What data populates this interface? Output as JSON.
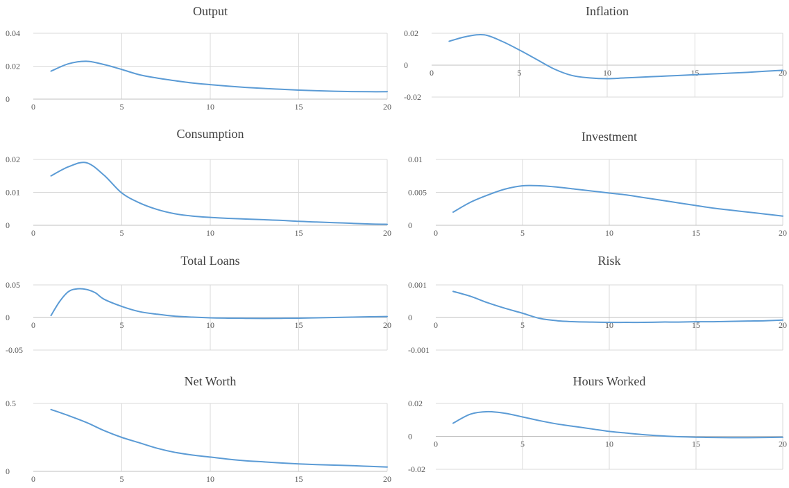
{
  "colors": {
    "line": "#5b9bd5",
    "grid": "#d9d9d9",
    "axis": "#bfbfbf",
    "text": "#595959"
  },
  "chart_data": [
    {
      "type": "line",
      "title": "Output",
      "xlim": [
        0,
        20
      ],
      "ylim": [
        0,
        0.04
      ],
      "xticks": [
        0,
        5,
        10,
        15,
        20
      ],
      "xtick_labels": [
        "0",
        "5",
        "10",
        "15",
        "20"
      ],
      "yticks": [
        0,
        0.02,
        0.04
      ],
      "ytick_labels": [
        "0",
        "0.02",
        "0.04"
      ],
      "grid": true,
      "legend": "none",
      "x": [
        1,
        2,
        3,
        4,
        5,
        6,
        7,
        8,
        9,
        10,
        11,
        12,
        13,
        14,
        15,
        16,
        17,
        18,
        19,
        20
      ],
      "series": [
        {
          "values": [
            0.017,
            0.0215,
            0.023,
            0.021,
            0.018,
            0.0148,
            0.0128,
            0.0112,
            0.0098,
            0.0088,
            0.0079,
            0.0071,
            0.0065,
            0.006,
            0.0055,
            0.0051,
            0.0048,
            0.0046,
            0.0045,
            0.0045
          ]
        }
      ]
    },
    {
      "type": "line",
      "title": "Inflation",
      "xlim": [
        0,
        20
      ],
      "ylim": [
        -0.02,
        0.02
      ],
      "xticks": [
        0,
        5,
        10,
        15,
        20
      ],
      "xtick_labels": [
        "0",
        "5",
        "10",
        "15",
        "20"
      ],
      "yticks": [
        -0.02,
        0,
        0.02
      ],
      "ytick_labels": [
        "-0.02",
        "0",
        "0.02"
      ],
      "grid": true,
      "legend": "none",
      "x": [
        1,
        2,
        3,
        4,
        5,
        6,
        7,
        8,
        9,
        10,
        11,
        12,
        13,
        14,
        15,
        16,
        17,
        18,
        19,
        20
      ],
      "series": [
        {
          "values": [
            0.015,
            0.018,
            0.019,
            0.015,
            0.0095,
            0.0035,
            -0.0025,
            -0.0065,
            -0.008,
            -0.0085,
            -0.008,
            -0.0075,
            -0.007,
            -0.0065,
            -0.006,
            -0.0055,
            -0.005,
            -0.0045,
            -0.0038,
            -0.0032
          ]
        }
      ]
    },
    {
      "type": "line",
      "title": "Consumption",
      "xlim": [
        0,
        20
      ],
      "ylim": [
        0,
        0.02
      ],
      "xticks": [
        0,
        5,
        10,
        15,
        20
      ],
      "xtick_labels": [
        "0",
        "5",
        "10",
        "15",
        "20"
      ],
      "yticks": [
        0,
        0.01,
        0.02
      ],
      "ytick_labels": [
        "0",
        "0.01",
        "0.02"
      ],
      "grid": true,
      "legend": "none",
      "x": [
        1,
        2,
        3,
        4,
        5,
        6,
        7,
        8,
        9,
        10,
        11,
        12,
        13,
        14,
        15,
        16,
        17,
        18,
        19,
        20
      ],
      "series": [
        {
          "values": [
            0.015,
            0.0178,
            0.019,
            0.0152,
            0.0098,
            0.0068,
            0.0048,
            0.0035,
            0.0028,
            0.0024,
            0.0021,
            0.0019,
            0.0017,
            0.0015,
            0.0012,
            0.001,
            0.0008,
            0.0006,
            0.0004,
            0.0003
          ]
        }
      ]
    },
    {
      "type": "line",
      "title": "Investment",
      "xlim": [
        0,
        20
      ],
      "ylim": [
        0,
        0.01
      ],
      "xticks": [
        0,
        5,
        10,
        15,
        20
      ],
      "xtick_labels": [
        "0",
        "5",
        "10",
        "15",
        "20"
      ],
      "yticks": [
        0,
        0.005,
        0.01
      ],
      "ytick_labels": [
        "0",
        "0.005",
        "0.01"
      ],
      "grid": true,
      "legend": "none",
      "x": [
        1,
        2,
        3,
        4,
        5,
        6,
        7,
        8,
        9,
        10,
        11,
        12,
        13,
        14,
        15,
        16,
        17,
        18,
        19,
        20
      ],
      "series": [
        {
          "values": [
            0.002,
            0.0035,
            0.0046,
            0.0055,
            0.006,
            0.006,
            0.0058,
            0.0055,
            0.0052,
            0.0049,
            0.0046,
            0.0042,
            0.0038,
            0.0034,
            0.003,
            0.0026,
            0.0023,
            0.002,
            0.0017,
            0.0014
          ]
        }
      ]
    },
    {
      "type": "line",
      "title": "Total Loans",
      "xlim": [
        0,
        20
      ],
      "ylim": [
        -0.05,
        0.05
      ],
      "xticks": [
        0,
        5,
        10,
        15,
        20
      ],
      "xtick_labels": [
        "0",
        "5",
        "10",
        "15",
        "20"
      ],
      "yticks": [
        -0.05,
        0,
        0.05
      ],
      "ytick_labels": [
        "-0.05",
        "0",
        "0.05"
      ],
      "grid": true,
      "legend": "none",
      "x": [
        1,
        1.5,
        2,
        2.5,
        3,
        3.5,
        4,
        5,
        6,
        7,
        8,
        9,
        10,
        11,
        12,
        13,
        14,
        15,
        16,
        17,
        18,
        19,
        20
      ],
      "series": [
        {
          "values": [
            0.003,
            0.025,
            0.04,
            0.044,
            0.043,
            0.038,
            0.028,
            0.017,
            0.009,
            0.005,
            0.002,
            0.0005,
            -0.0005,
            -0.001,
            -0.0013,
            -0.0015,
            -0.0013,
            -0.001,
            -0.0005,
            0,
            0.0005,
            0.001,
            0.0015
          ]
        }
      ]
    },
    {
      "type": "line",
      "title": "Risk",
      "xlim": [
        0,
        20
      ],
      "ylim": [
        -0.001,
        0.001
      ],
      "xticks": [
        0,
        5,
        10,
        15,
        20
      ],
      "xtick_labels": [
        "0",
        "5",
        "10",
        "15",
        "20"
      ],
      "yticks": [
        -0.001,
        0,
        0.001
      ],
      "ytick_labels": [
        "-0.001",
        "0",
        "0.001"
      ],
      "grid": true,
      "legend": "none",
      "x": [
        1,
        2,
        3,
        4,
        5,
        6,
        7,
        8,
        9,
        10,
        11,
        12,
        13,
        14,
        15,
        16,
        17,
        18,
        19,
        20
      ],
      "series": [
        {
          "values": [
            0.0008,
            0.00065,
            0.00045,
            0.00028,
            0.00013,
            -3e-05,
            -0.0001,
            -0.00013,
            -0.00014,
            -0.00015,
            -0.00015,
            -0.00015,
            -0.00014,
            -0.00014,
            -0.00013,
            -0.00013,
            -0.00012,
            -0.00011,
            -0.0001,
            -8e-05
          ]
        }
      ]
    },
    {
      "type": "line",
      "title": "Net Worth",
      "xlim": [
        0,
        20
      ],
      "ylim": [
        0,
        0.5
      ],
      "xticks": [
        0,
        5,
        10,
        15,
        20
      ],
      "xtick_labels": [
        "0",
        "5",
        "10",
        "15",
        "20"
      ],
      "yticks": [
        0,
        0.5
      ],
      "ytick_labels": [
        "0",
        "0.5"
      ],
      "grid": true,
      "legend": "none",
      "x": [
        1,
        2,
        3,
        4,
        5,
        6,
        7,
        8,
        9,
        10,
        11,
        12,
        13,
        14,
        15,
        16,
        17,
        18,
        19,
        20
      ],
      "series": [
        {
          "values": [
            0.455,
            0.41,
            0.36,
            0.3,
            0.25,
            0.21,
            0.17,
            0.14,
            0.12,
            0.105,
            0.09,
            0.078,
            0.07,
            0.062,
            0.055,
            0.05,
            0.046,
            0.042,
            0.037,
            0.032
          ]
        }
      ]
    },
    {
      "type": "line",
      "title": "Hours Worked",
      "xlim": [
        0,
        20
      ],
      "ylim": [
        -0.02,
        0.02
      ],
      "xticks": [
        0,
        5,
        10,
        15,
        20
      ],
      "xtick_labels": [
        "0",
        "5",
        "10",
        "15",
        "20"
      ],
      "yticks": [
        -0.02,
        0,
        0.02
      ],
      "ytick_labels": [
        "-0.02",
        "0",
        "0.02"
      ],
      "grid": true,
      "legend": "none",
      "x": [
        1,
        2,
        3,
        4,
        5,
        6,
        7,
        8,
        9,
        10,
        11,
        12,
        13,
        14,
        15,
        16,
        17,
        18,
        19,
        20
      ],
      "series": [
        {
          "values": [
            0.008,
            0.0135,
            0.015,
            0.014,
            0.0118,
            0.0095,
            0.0075,
            0.006,
            0.0045,
            0.003,
            0.002,
            0.001,
            0.0003,
            -0.0002,
            -0.0005,
            -0.0007,
            -0.0008,
            -0.0008,
            -0.0007,
            -0.0005
          ]
        }
      ]
    }
  ]
}
